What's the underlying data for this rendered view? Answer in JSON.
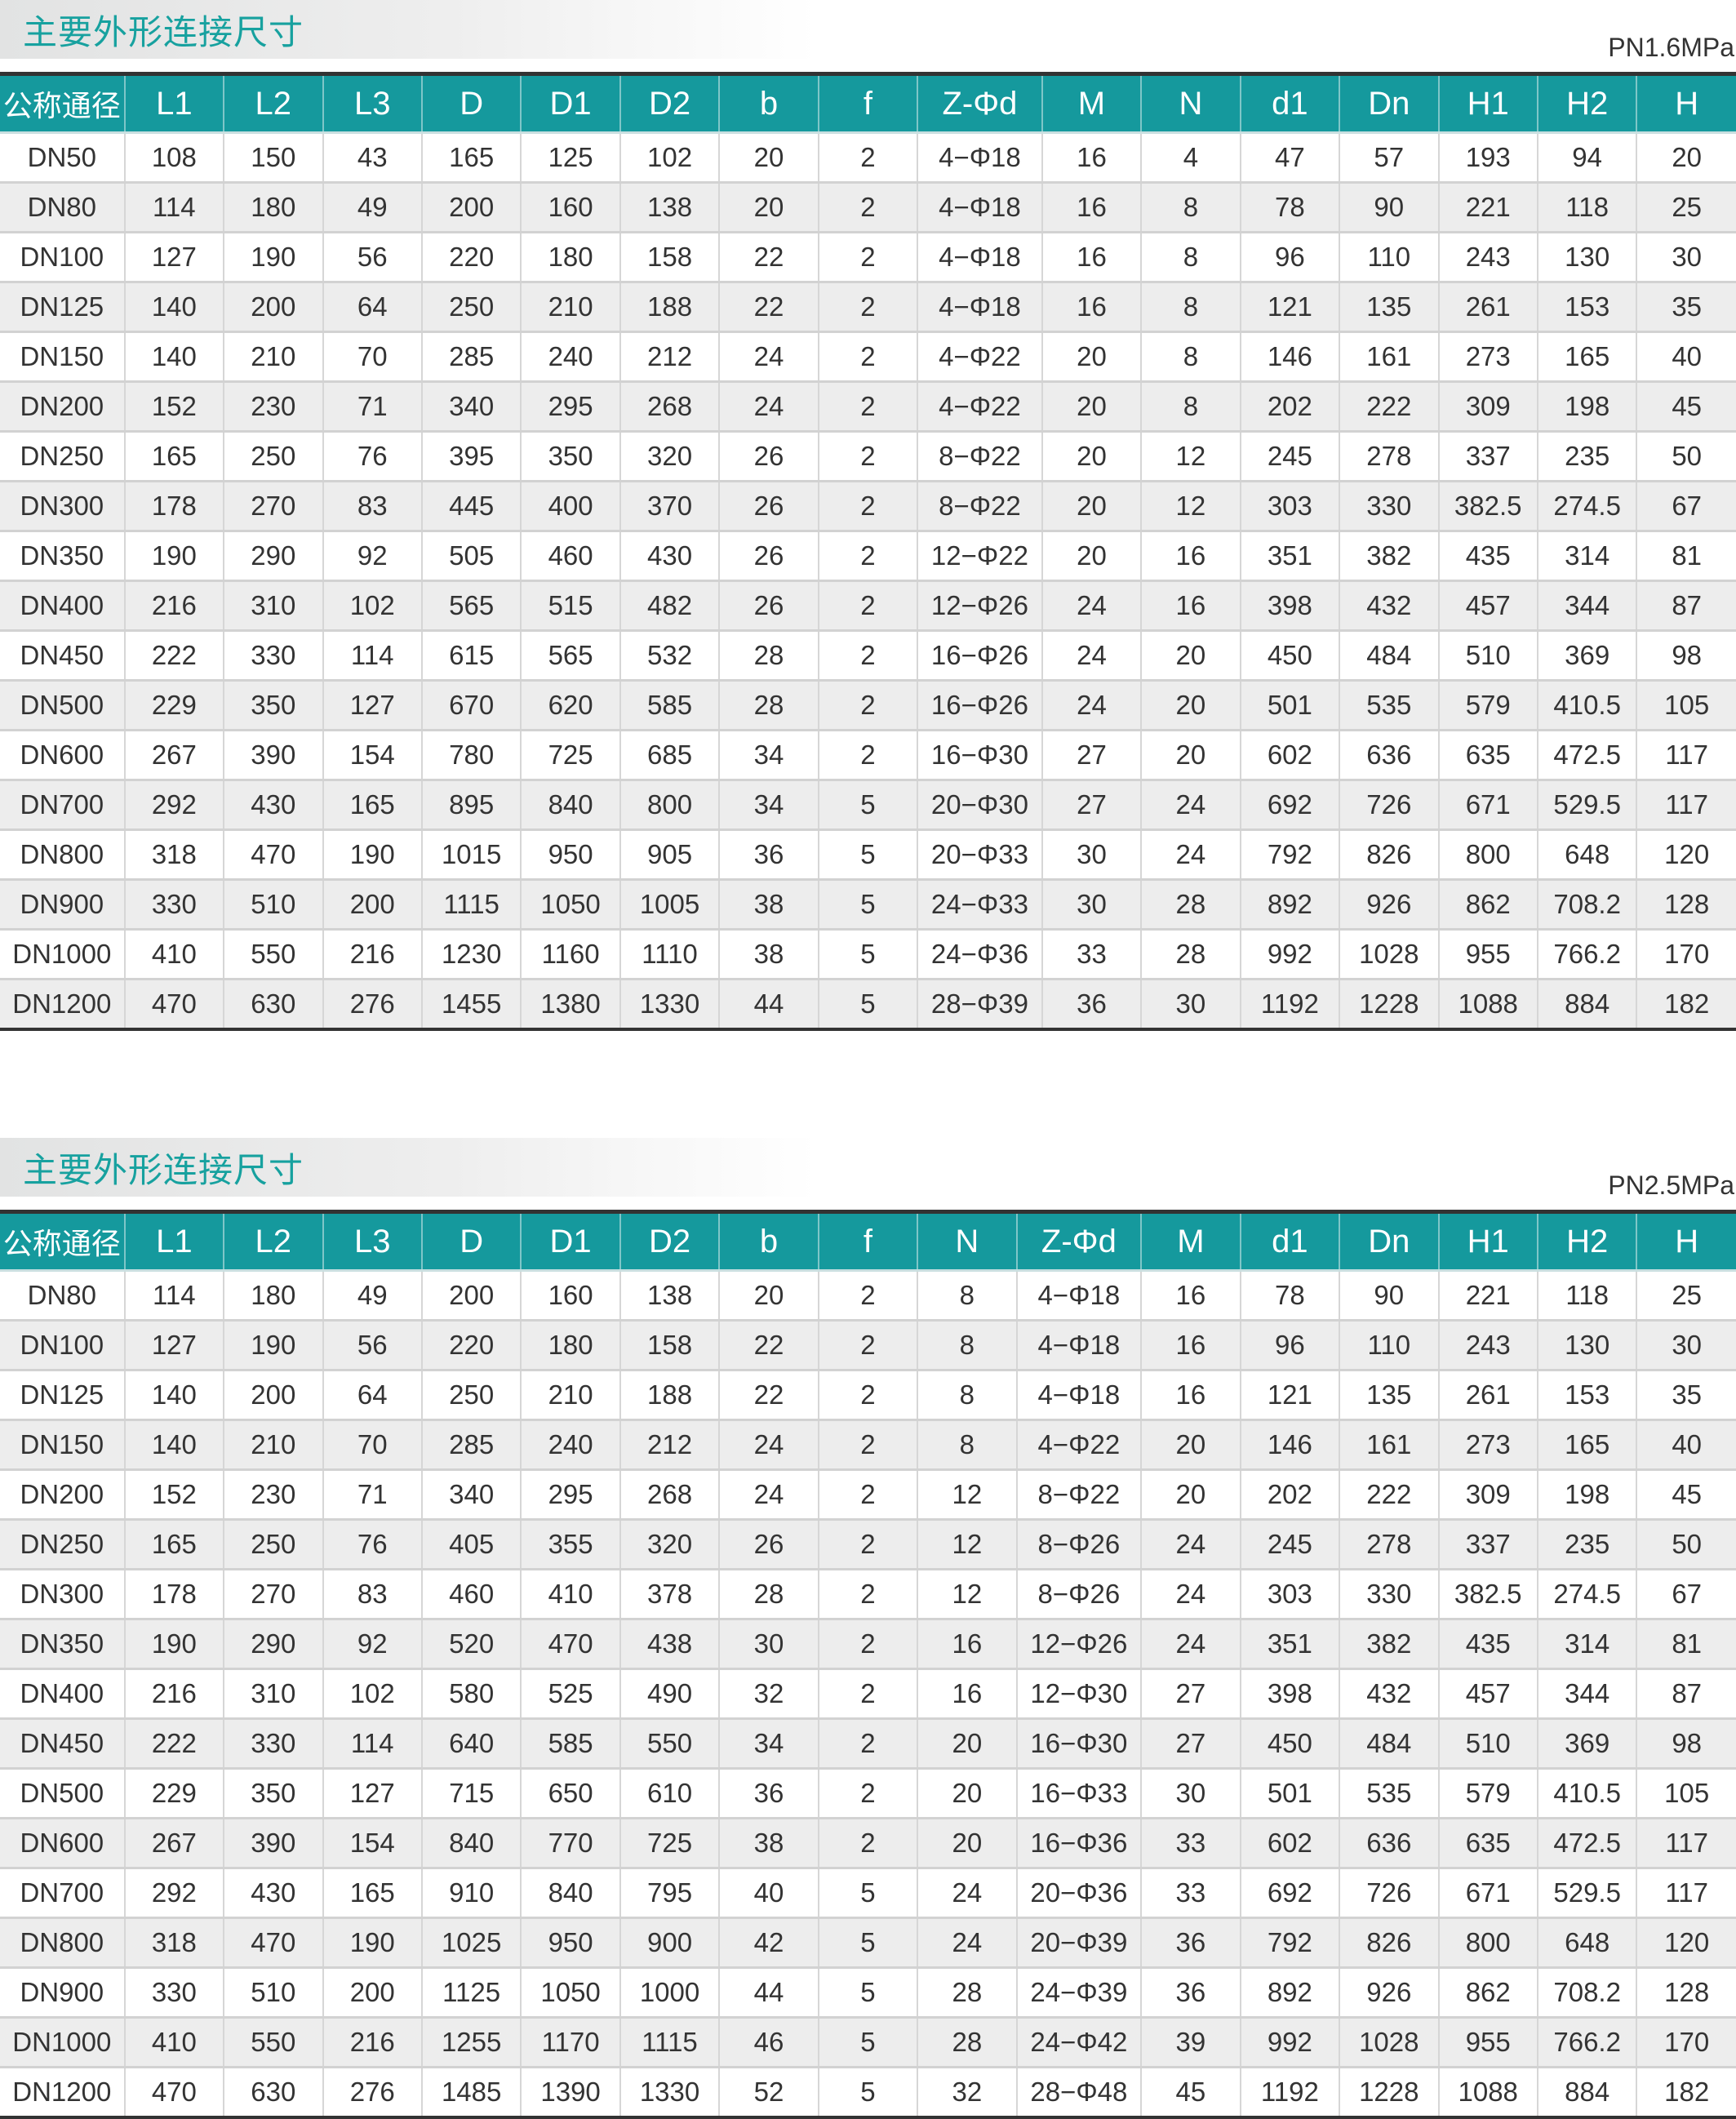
{
  "colors": {
    "header": "#15999d",
    "title": "#17a19f",
    "alt_row": "#ededed"
  },
  "tables": [
    {
      "title": "主要外形连接尺寸",
      "pressure": "PN1.6MPa",
      "headers": [
        "公称通径",
        "L1",
        "L2",
        "L3",
        "D",
        "D1",
        "D2",
        "b",
        "f",
        "Z-Φd",
        "M",
        "N",
        "d1",
        "Dn",
        "H1",
        "H2",
        "H"
      ],
      "rows": [
        [
          "DN50",
          "108",
          "150",
          "43",
          "165",
          "125",
          "102",
          "20",
          "2",
          "4−Φ18",
          "16",
          "4",
          "47",
          "57",
          "193",
          "94",
          "20"
        ],
        [
          "DN80",
          "114",
          "180",
          "49",
          "200",
          "160",
          "138",
          "20",
          "2",
          "4−Φ18",
          "16",
          "8",
          "78",
          "90",
          "221",
          "118",
          "25"
        ],
        [
          "DN100",
          "127",
          "190",
          "56",
          "220",
          "180",
          "158",
          "22",
          "2",
          "4−Φ18",
          "16",
          "8",
          "96",
          "110",
          "243",
          "130",
          "30"
        ],
        [
          "DN125",
          "140",
          "200",
          "64",
          "250",
          "210",
          "188",
          "22",
          "2",
          "4−Φ18",
          "16",
          "8",
          "121",
          "135",
          "261",
          "153",
          "35"
        ],
        [
          "DN150",
          "140",
          "210",
          "70",
          "285",
          "240",
          "212",
          "24",
          "2",
          "4−Φ22",
          "20",
          "8",
          "146",
          "161",
          "273",
          "165",
          "40"
        ],
        [
          "DN200",
          "152",
          "230",
          "71",
          "340",
          "295",
          "268",
          "24",
          "2",
          "4−Φ22",
          "20",
          "8",
          "202",
          "222",
          "309",
          "198",
          "45"
        ],
        [
          "DN250",
          "165",
          "250",
          "76",
          "395",
          "350",
          "320",
          "26",
          "2",
          "8−Φ22",
          "20",
          "12",
          "245",
          "278",
          "337",
          "235",
          "50"
        ],
        [
          "DN300",
          "178",
          "270",
          "83",
          "445",
          "400",
          "370",
          "26",
          "2",
          "8−Φ22",
          "20",
          "12",
          "303",
          "330",
          "382.5",
          "274.5",
          "67"
        ],
        [
          "DN350",
          "190",
          "290",
          "92",
          "505",
          "460",
          "430",
          "26",
          "2",
          "12−Φ22",
          "20",
          "16",
          "351",
          "382",
          "435",
          "314",
          "81"
        ],
        [
          "DN400",
          "216",
          "310",
          "102",
          "565",
          "515",
          "482",
          "26",
          "2",
          "12−Φ26",
          "24",
          "16",
          "398",
          "432",
          "457",
          "344",
          "87"
        ],
        [
          "DN450",
          "222",
          "330",
          "114",
          "615",
          "565",
          "532",
          "28",
          "2",
          "16−Φ26",
          "24",
          "20",
          "450",
          "484",
          "510",
          "369",
          "98"
        ],
        [
          "DN500",
          "229",
          "350",
          "127",
          "670",
          "620",
          "585",
          "28",
          "2",
          "16−Φ26",
          "24",
          "20",
          "501",
          "535",
          "579",
          "410.5",
          "105"
        ],
        [
          "DN600",
          "267",
          "390",
          "154",
          "780",
          "725",
          "685",
          "34",
          "2",
          "16−Φ30",
          "27",
          "20",
          "602",
          "636",
          "635",
          "472.5",
          "117"
        ],
        [
          "DN700",
          "292",
          "430",
          "165",
          "895",
          "840",
          "800",
          "34",
          "5",
          "20−Φ30",
          "27",
          "24",
          "692",
          "726",
          "671",
          "529.5",
          "117"
        ],
        [
          "DN800",
          "318",
          "470",
          "190",
          "1015",
          "950",
          "905",
          "36",
          "5",
          "20−Φ33",
          "30",
          "24",
          "792",
          "826",
          "800",
          "648",
          "120"
        ],
        [
          "DN900",
          "330",
          "510",
          "200",
          "1115",
          "1050",
          "1005",
          "38",
          "5",
          "24−Φ33",
          "30",
          "28",
          "892",
          "926",
          "862",
          "708.2",
          "128"
        ],
        [
          "DN1000",
          "410",
          "550",
          "216",
          "1230",
          "1160",
          "1110",
          "38",
          "5",
          "24−Φ36",
          "33",
          "28",
          "992",
          "1028",
          "955",
          "766.2",
          "170"
        ],
        [
          "DN1200",
          "470",
          "630",
          "276",
          "1455",
          "1380",
          "1330",
          "44",
          "5",
          "28−Φ39",
          "36",
          "30",
          "1192",
          "1228",
          "1088",
          "884",
          "182"
        ]
      ]
    },
    {
      "title": "主要外形连接尺寸",
      "pressure": "PN2.5MPa",
      "headers": [
        "公称通径",
        "L1",
        "L2",
        "L3",
        "D",
        "D1",
        "D2",
        "b",
        "f",
        "N",
        "Z-Φd",
        "M",
        "d1",
        "Dn",
        "H1",
        "H2",
        "H"
      ],
      "rows": [
        [
          "DN80",
          "114",
          "180",
          "49",
          "200",
          "160",
          "138",
          "20",
          "2",
          "8",
          "4−Φ18",
          "16",
          "78",
          "90",
          "221",
          "118",
          "25"
        ],
        [
          "DN100",
          "127",
          "190",
          "56",
          "220",
          "180",
          "158",
          "22",
          "2",
          "8",
          "4−Φ18",
          "16",
          "96",
          "110",
          "243",
          "130",
          "30"
        ],
        [
          "DN125",
          "140",
          "200",
          "64",
          "250",
          "210",
          "188",
          "22",
          "2",
          "8",
          "4−Φ18",
          "16",
          "121",
          "135",
          "261",
          "153",
          "35"
        ],
        [
          "DN150",
          "140",
          "210",
          "70",
          "285",
          "240",
          "212",
          "24",
          "2",
          "8",
          "4−Φ22",
          "20",
          "146",
          "161",
          "273",
          "165",
          "40"
        ],
        [
          "DN200",
          "152",
          "230",
          "71",
          "340",
          "295",
          "268",
          "24",
          "2",
          "12",
          "8−Φ22",
          "20",
          "202",
          "222",
          "309",
          "198",
          "45"
        ],
        [
          "DN250",
          "165",
          "250",
          "76",
          "405",
          "355",
          "320",
          "26",
          "2",
          "12",
          "8−Φ26",
          "24",
          "245",
          "278",
          "337",
          "235",
          "50"
        ],
        [
          "DN300",
          "178",
          "270",
          "83",
          "460",
          "410",
          "378",
          "28",
          "2",
          "12",
          "8−Φ26",
          "24",
          "303",
          "330",
          "382.5",
          "274.5",
          "67"
        ],
        [
          "DN350",
          "190",
          "290",
          "92",
          "520",
          "470",
          "438",
          "30",
          "2",
          "16",
          "12−Φ26",
          "24",
          "351",
          "382",
          "435",
          "314",
          "81"
        ],
        [
          "DN400",
          "216",
          "310",
          "102",
          "580",
          "525",
          "490",
          "32",
          "2",
          "16",
          "12−Φ30",
          "27",
          "398",
          "432",
          "457",
          "344",
          "87"
        ],
        [
          "DN450",
          "222",
          "330",
          "114",
          "640",
          "585",
          "550",
          "34",
          "2",
          "20",
          "16−Φ30",
          "27",
          "450",
          "484",
          "510",
          "369",
          "98"
        ],
        [
          "DN500",
          "229",
          "350",
          "127",
          "715",
          "650",
          "610",
          "36",
          "2",
          "20",
          "16−Φ33",
          "30",
          "501",
          "535",
          "579",
          "410.5",
          "105"
        ],
        [
          "DN600",
          "267",
          "390",
          "154",
          "840",
          "770",
          "725",
          "38",
          "2",
          "20",
          "16−Φ36",
          "33",
          "602",
          "636",
          "635",
          "472.5",
          "117"
        ],
        [
          "DN700",
          "292",
          "430",
          "165",
          "910",
          "840",
          "795",
          "40",
          "5",
          "24",
          "20−Φ36",
          "33",
          "692",
          "726",
          "671",
          "529.5",
          "117"
        ],
        [
          "DN800",
          "318",
          "470",
          "190",
          "1025",
          "950",
          "900",
          "42",
          "5",
          "24",
          "20−Φ39",
          "36",
          "792",
          "826",
          "800",
          "648",
          "120"
        ],
        [
          "DN900",
          "330",
          "510",
          "200",
          "1125",
          "1050",
          "1000",
          "44",
          "5",
          "28",
          "24−Φ39",
          "36",
          "892",
          "926",
          "862",
          "708.2",
          "128"
        ],
        [
          "DN1000",
          "410",
          "550",
          "216",
          "1255",
          "1170",
          "1115",
          "46",
          "5",
          "28",
          "24−Φ42",
          "39",
          "992",
          "1028",
          "955",
          "766.2",
          "170"
        ],
        [
          "DN1200",
          "470",
          "630",
          "276",
          "1485",
          "1390",
          "1330",
          "52",
          "5",
          "32",
          "28−Φ48",
          "45",
          "1192",
          "1228",
          "1088",
          "884",
          "182"
        ]
      ]
    }
  ]
}
